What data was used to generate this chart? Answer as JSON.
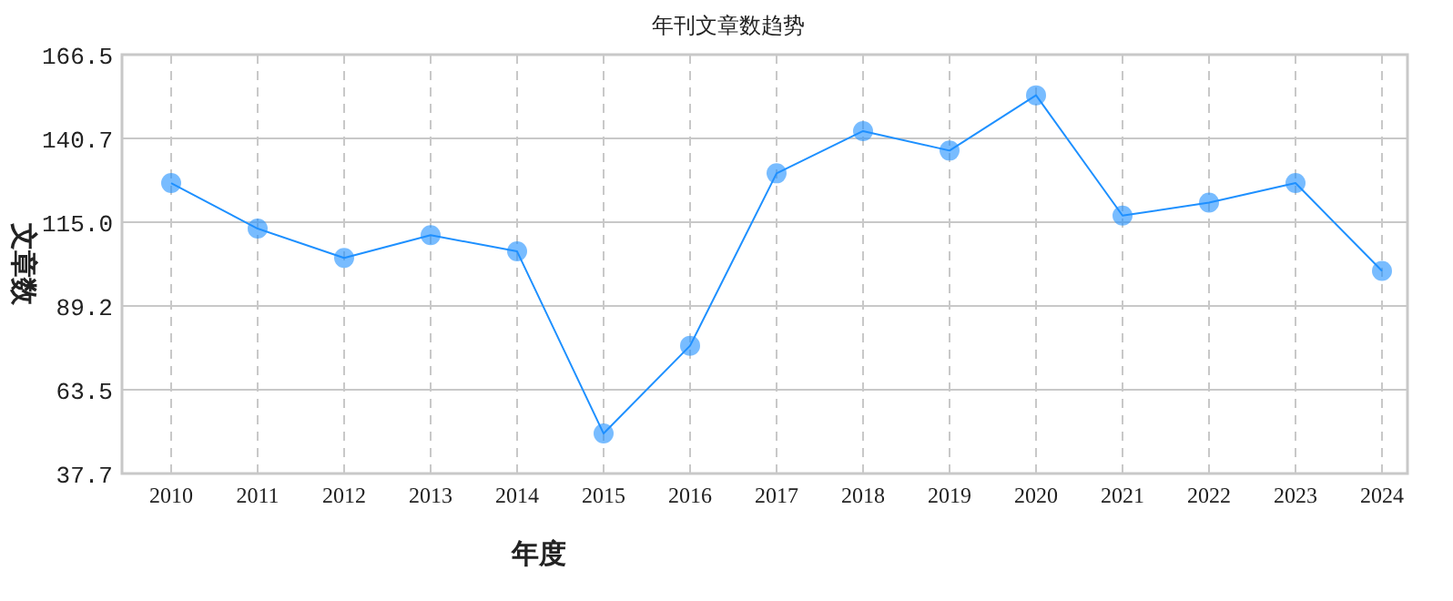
{
  "chart_data": {
    "type": "line",
    "title": "年刊文章数趋势",
    "xlabel": "年度",
    "ylabel": "文章数",
    "categories": [
      "2010",
      "2011",
      "2012",
      "2013",
      "2014",
      "2015",
      "2016",
      "2017",
      "2018",
      "2019",
      "2020",
      "2021",
      "2022",
      "2023",
      "2024"
    ],
    "series": [
      {
        "color": "#1e90ff",
        "values": [
          127,
          113,
          104,
          111,
          106,
          50,
          77,
          130,
          143,
          137,
          154,
          117,
          121,
          127,
          100
        ]
      }
    ],
    "ylim": [
      37.7,
      166.5
    ],
    "yticks": [
      37.7,
      {
        "value": 63.46,
        "label": "63.5"
      },
      {
        "value": 89.22,
        "label": "89.2"
      },
      {
        "value": 114.98,
        "label": "115.0"
      },
      {
        "value": 140.74,
        "label": "140.7"
      },
      166.5
    ],
    "grid": true,
    "marker": "circle"
  }
}
